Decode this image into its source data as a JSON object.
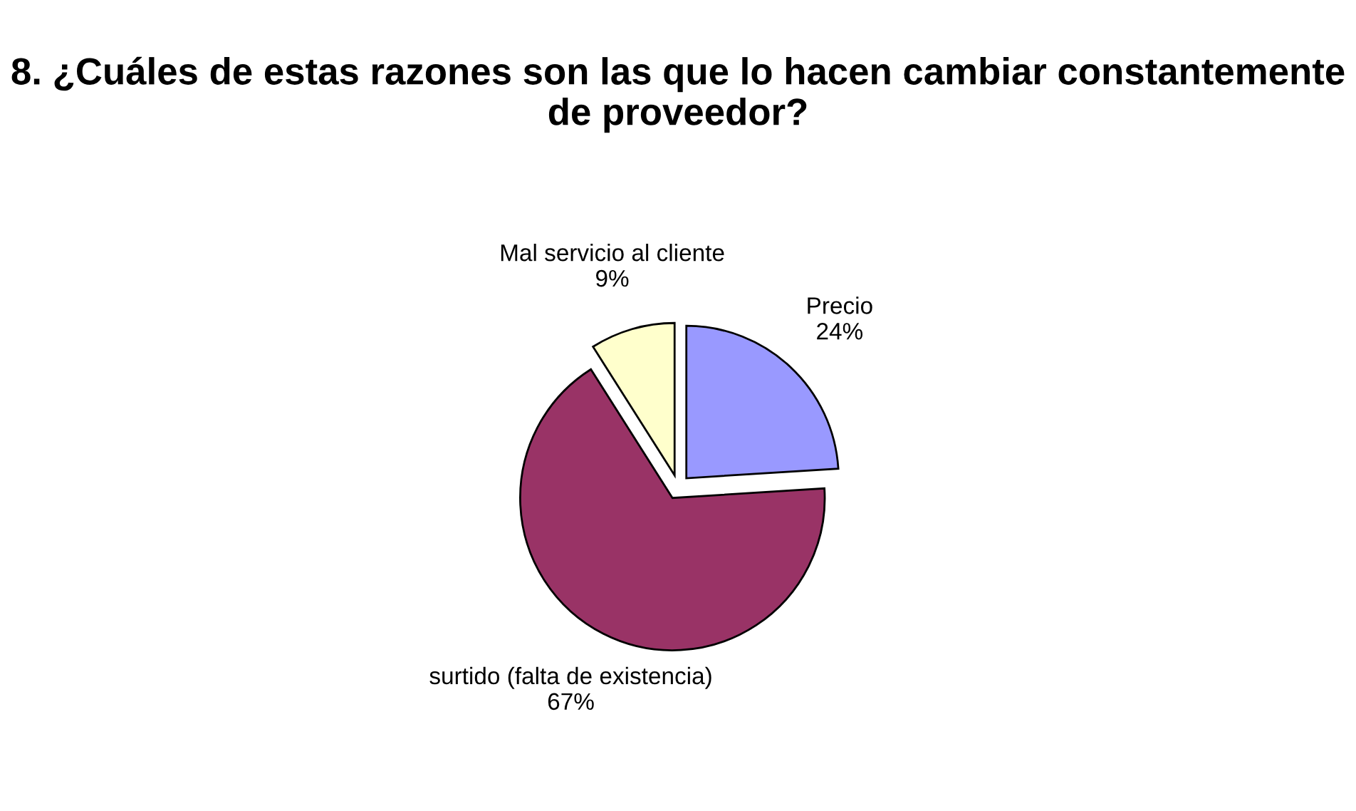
{
  "chart_data": {
    "type": "pie",
    "title": "8. ¿Cuáles de estas razones son las que lo hacen cambiar constantemente de proveedor?",
    "categories": [
      "Precio",
      "surtido (falta de existencia)",
      "Mal servicio al cliente"
    ],
    "values": [
      24,
      67,
      9
    ],
    "value_labels": [
      "24%",
      "67%",
      "9%"
    ],
    "colors": [
      "#9999ff",
      "#993366",
      "#ffffcc"
    ],
    "legend": false
  }
}
